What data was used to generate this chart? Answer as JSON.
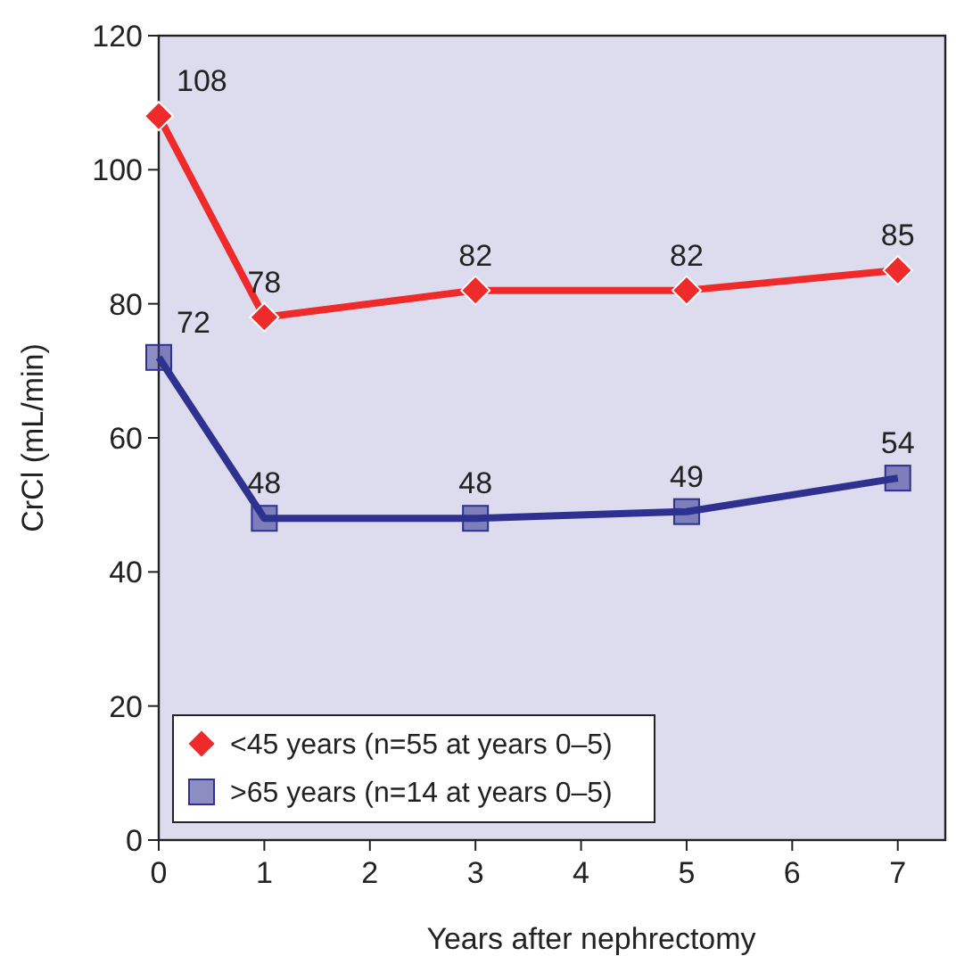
{
  "chart_data": {
    "type": "line",
    "xlabel": "Years after nephrectomy",
    "ylabel": "CrCl (mL/min)",
    "xlim": [
      0,
      7.45
    ],
    "xticks": [
      0,
      1,
      2,
      3,
      4,
      5,
      6,
      7
    ],
    "ylim": [
      0,
      120
    ],
    "yticks": [
      0,
      20,
      40,
      60,
      80,
      100,
      120
    ],
    "x": [
      0,
      1,
      3,
      5,
      7
    ],
    "series": [
      {
        "name": "<45 years (n=55 at years 0–5)",
        "color": "#ee2a2a",
        "marker": "diamond",
        "values": [
          108,
          78,
          82,
          82,
          85
        ]
      },
      {
        "name": ">65 years (n=14 at years 0–5)",
        "color": "#2e318f",
        "marker": "square",
        "values": [
          72,
          48,
          48,
          49,
          54
        ]
      }
    ],
    "data_labels": true,
    "legend": "bottom left",
    "grid": false
  }
}
